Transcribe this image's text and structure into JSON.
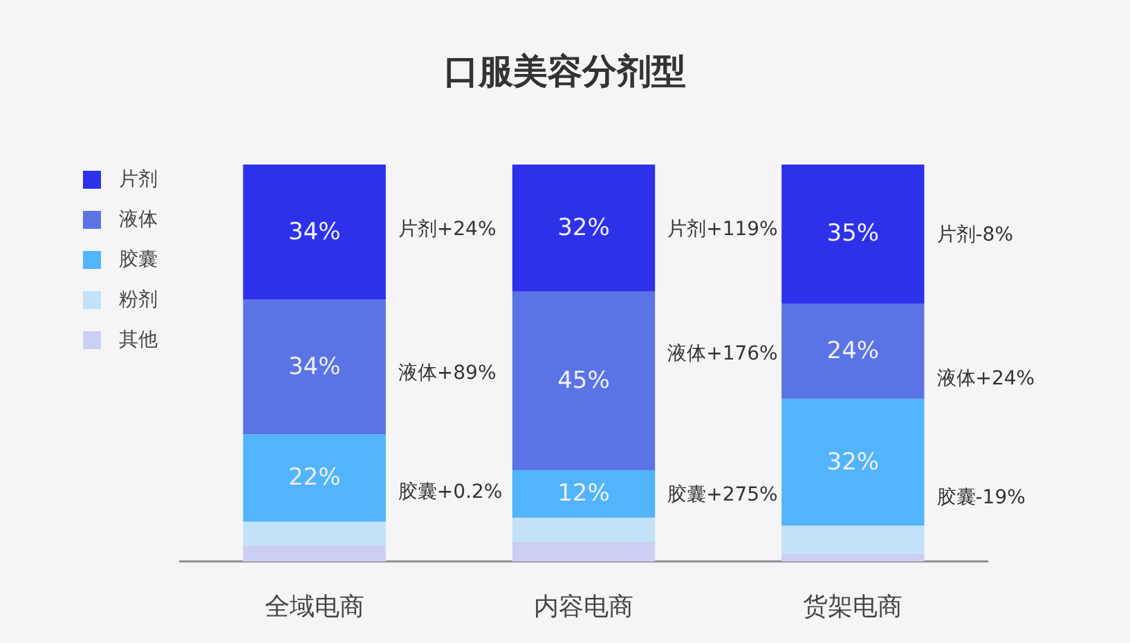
{
  "chart_data": {
    "type": "bar",
    "title": "口服美容分剂型",
    "categories": [
      "全域电商",
      "内容电商",
      "货架电商"
    ],
    "stacked": true,
    "ylim": [
      0,
      100
    ],
    "tick_labels": "x",
    "grid": false,
    "legend": "top left",
    "series": [
      {
        "name": "其他",
        "color": "#cbd0f2",
        "values": [
          4,
          5,
          2
        ]
      },
      {
        "name": "粉剂",
        "color": "#c3e2f7",
        "values": [
          6,
          6,
          7
        ]
      },
      {
        "name": "胶囊",
        "color": "#52b4fa",
        "values": [
          22,
          12,
          32
        ],
        "value_labels": [
          "22%",
          "12%",
          "32%"
        ]
      },
      {
        "name": "液体",
        "color": "#5a73e5",
        "values": [
          34,
          45,
          24
        ],
        "value_labels": [
          "34%",
          "45%",
          "24%"
        ]
      },
      {
        "name": "片剂",
        "color": "#2e31ea",
        "values": [
          34,
          32,
          35
        ],
        "value_labels": [
          "34%",
          "32%",
          "35%"
        ]
      }
    ],
    "annotations": [
      "片剂+24%",
      "液体+89%",
      "胶囊+0.2%",
      "片剂+119%",
      "液体+176%",
      "胶囊+275%",
      "片剂-8%",
      "液体+24%",
      "胶囊-19%"
    ]
  }
}
